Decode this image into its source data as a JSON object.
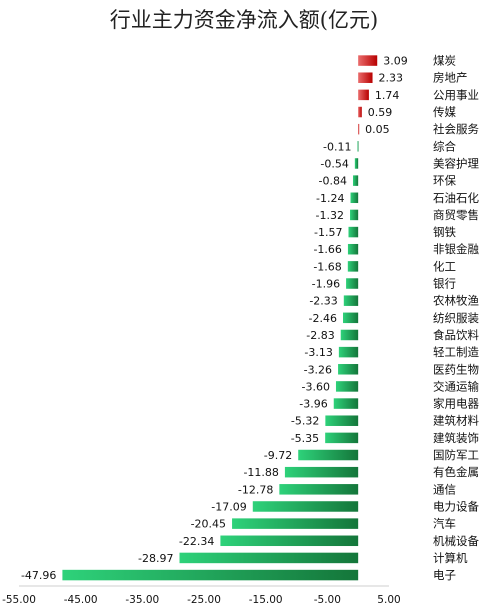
{
  "colors": {
    "positive_start": "#ea6c6c",
    "positive_end": "#b80000",
    "negative_start": "#2ed27a",
    "negative_end": "#14763a",
    "axis": "#cfcfcf",
    "text": "#111111"
  },
  "chart_data": {
    "type": "bar",
    "orientation": "horizontal",
    "title": "行业主力资金净流入额(亿元)",
    "xlim": [
      -55,
      5
    ],
    "xticks": [
      "-55.00",
      "-45.00",
      "-35.00",
      "-25.00",
      "-15.00",
      "-5.00",
      "5.00"
    ],
    "xtick_values": [
      -55,
      -45,
      -35,
      -25,
      -15,
      -5,
      5
    ],
    "grid": false,
    "legend": "none",
    "categories": [
      "煤炭",
      "房地产",
      "公用事业",
      "传媒",
      "社会服务",
      "综合",
      "美容护理",
      "环保",
      "石油石化",
      "商贸零售",
      "钢铁",
      "非银金融",
      "化工",
      "银行",
      "农林牧渔",
      "纺织服装",
      "食品饮料",
      "轻工制造",
      "医药生物",
      "交通运输",
      "家用电器",
      "建筑材料",
      "建筑装饰",
      "国防军工",
      "有色金属",
      "通信",
      "电力设备",
      "汽车",
      "机械设备",
      "计算机",
      "电子"
    ],
    "values": [
      3.09,
      2.33,
      1.74,
      0.59,
      0.05,
      -0.11,
      -0.54,
      -0.84,
      -1.24,
      -1.32,
      -1.57,
      -1.66,
      -1.68,
      -1.96,
      -2.33,
      -2.46,
      -2.83,
      -3.13,
      -3.26,
      -3.6,
      -3.96,
      -5.32,
      -5.35,
      -9.72,
      -11.88,
      -12.78,
      -17.09,
      -20.45,
      -22.34,
      -28.97,
      -47.96
    ],
    "value_labels": [
      "3.09",
      "2.33",
      "1.74",
      "0.59",
      "0.05",
      "-0.11",
      "-0.54",
      "-0.84",
      "-1.24",
      "-1.32",
      "-1.57",
      "-1.66",
      "-1.68",
      "-1.96",
      "-2.33",
      "-2.46",
      "-2.83",
      "-3.13",
      "-3.26",
      "-3.60",
      "-3.96",
      "-5.32",
      "-5.35",
      "-9.72",
      "-11.88",
      "-12.78",
      "-17.09",
      "-20.45",
      "-22.34",
      "-28.97",
      "-47.96"
    ]
  }
}
